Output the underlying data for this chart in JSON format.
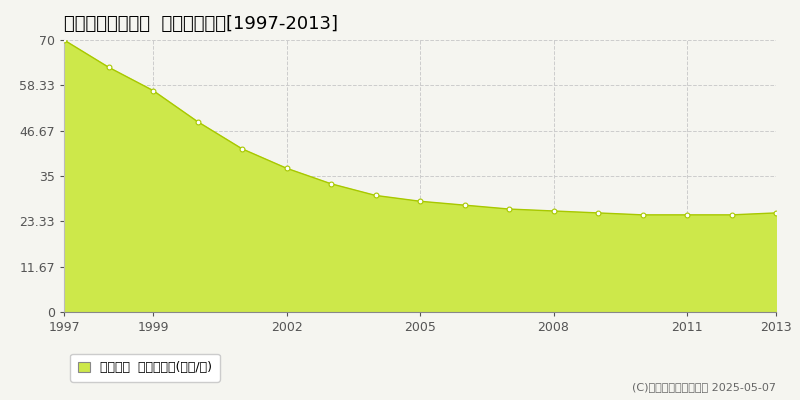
{
  "title": "各務原市那加本町  基準地価推移[1997-2013]",
  "years": [
    1997,
    1998,
    1999,
    2000,
    2001,
    2002,
    2003,
    2004,
    2005,
    2006,
    2007,
    2008,
    2009,
    2010,
    2011,
    2012,
    2013
  ],
  "values": [
    70,
    63,
    57,
    49,
    42,
    37,
    33,
    30,
    28.5,
    27.5,
    26.5,
    26,
    25.5,
    25,
    25,
    25,
    25.5
  ],
  "ylim": [
    0,
    70
  ],
  "yticks": [
    0,
    11.67,
    23.33,
    35,
    46.67,
    58.33,
    70
  ],
  "ytick_labels": [
    "0",
    "11.67",
    "23.33",
    "35",
    "46.67",
    "58.33",
    "70"
  ],
  "xticks": [
    1997,
    1999,
    2002,
    2005,
    2008,
    2011,
    2013
  ],
  "xlim": [
    1997,
    2013
  ],
  "fill_color": "#cde84a",
  "line_color": "#a8c800",
  "marker_facecolor": "#ffffff",
  "marker_edgecolor": "#a8c800",
  "background_color": "#f5f5f0",
  "plot_bg_color": "#f5f5f0",
  "grid_color": "#cccccc",
  "legend_label": "基準地価  平均坪単価(万円/坪)",
  "legend_marker_color": "#cde84a",
  "copyright_text": "(C)土地価格ドットコム 2025-05-07",
  "title_fontsize": 13,
  "tick_fontsize": 9,
  "legend_fontsize": 9,
  "copyright_fontsize": 8
}
